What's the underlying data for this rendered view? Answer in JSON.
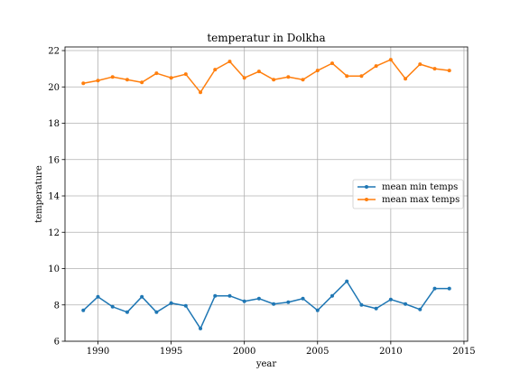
{
  "chart_data": {
    "type": "line",
    "title": "temperatur in Dolkha",
    "xlabel": "year",
    "ylabel": "temperature",
    "xlim": [
      1987.75,
      2015.25
    ],
    "ylim": [
      6,
      22.2
    ],
    "xticks": [
      1990,
      1995,
      2000,
      2005,
      2010,
      2015
    ],
    "yticks": [
      6,
      8,
      10,
      12,
      14,
      16,
      18,
      20,
      22
    ],
    "grid": true,
    "legend_position": "center-right",
    "x": [
      1989,
      1990,
      1991,
      1992,
      1993,
      1994,
      1995,
      1996,
      1997,
      1998,
      1999,
      2000,
      2001,
      2002,
      2003,
      2004,
      2005,
      2006,
      2007,
      2008,
      2009,
      2010,
      2011,
      2012,
      2013,
      2014
    ],
    "series": [
      {
        "name": "mean min temps",
        "color": "#1f77b4",
        "values": [
          7.7,
          8.45,
          7.9,
          7.6,
          8.45,
          7.6,
          8.1,
          7.95,
          6.7,
          8.5,
          8.5,
          8.2,
          8.35,
          8.05,
          8.15,
          8.35,
          7.7,
          8.5,
          9.3,
          8.0,
          7.8,
          8.3,
          8.05,
          7.75,
          8.9,
          8.9
        ]
      },
      {
        "name": "mean max temps",
        "color": "#ff7f0e",
        "values": [
          20.2,
          20.35,
          20.55,
          20.4,
          20.25,
          20.75,
          20.5,
          20.7,
          19.7,
          20.95,
          21.4,
          20.5,
          20.85,
          20.4,
          20.55,
          20.4,
          20.9,
          21.3,
          20.6,
          20.6,
          21.15,
          21.5,
          20.45,
          21.25,
          21.0,
          20.9
        ]
      }
    ]
  }
}
